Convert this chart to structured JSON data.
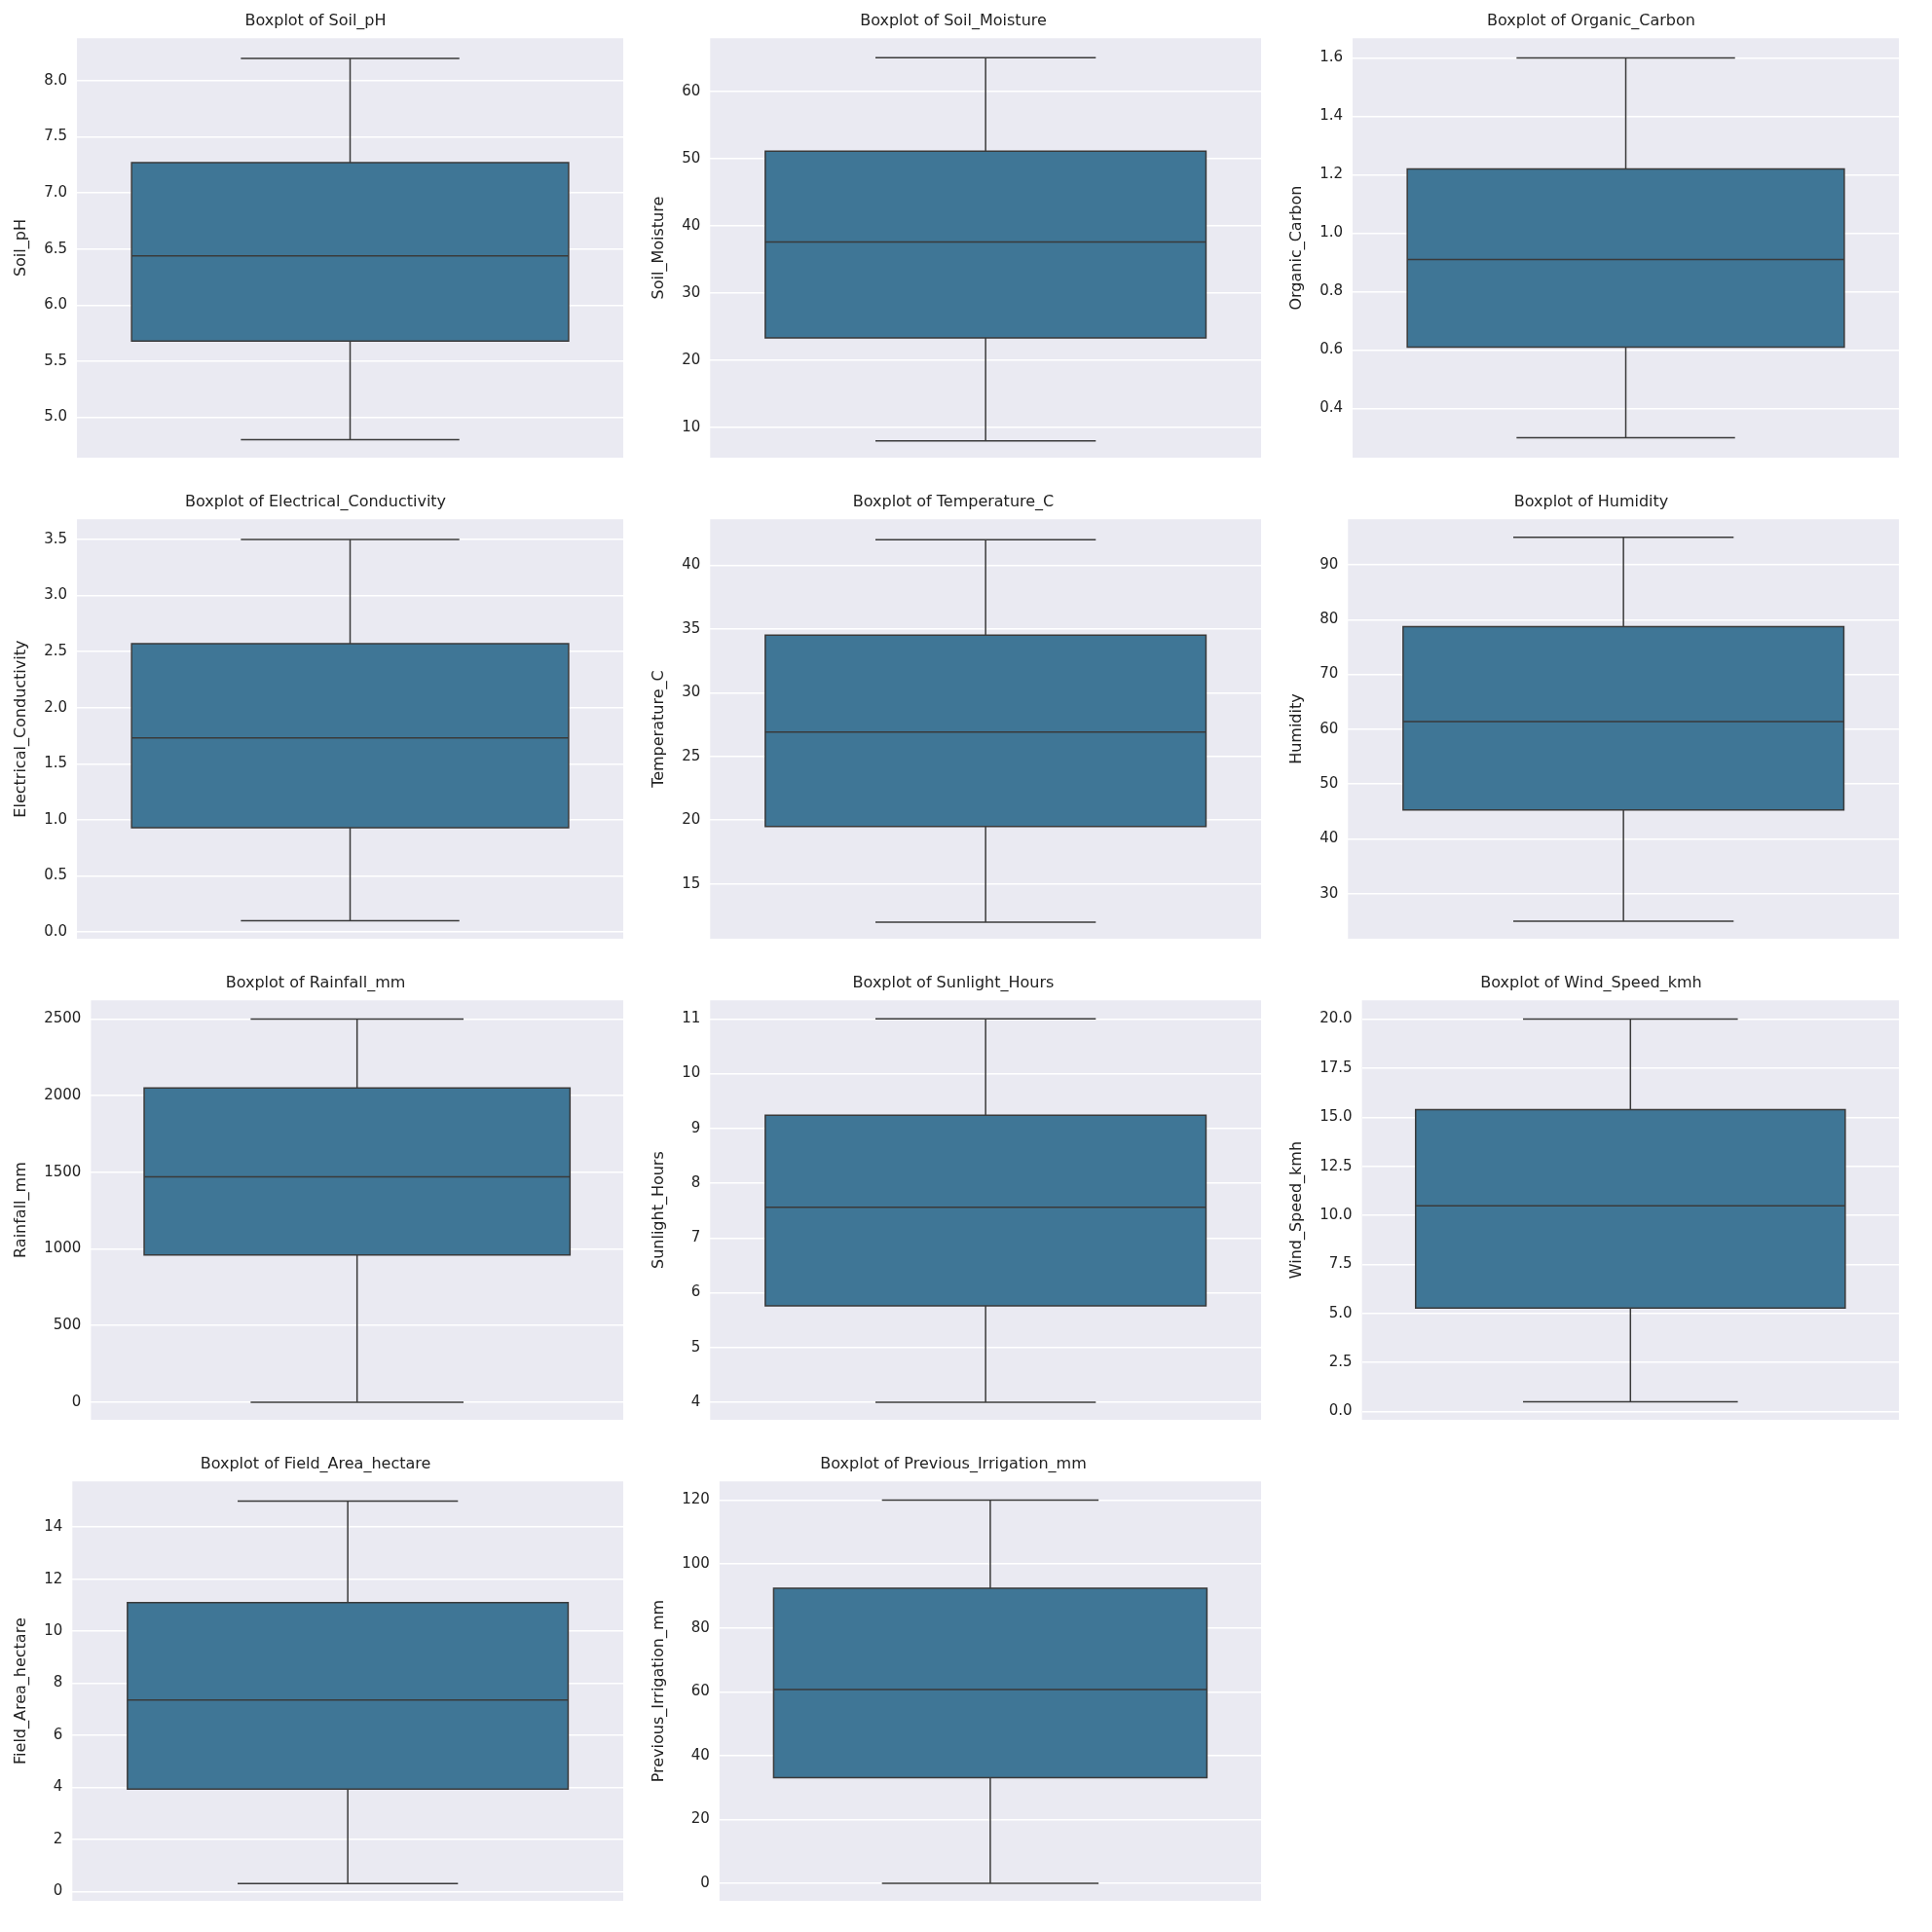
{
  "chart_data": [
    {
      "type": "box",
      "title": "Boxplot of Soil_pH",
      "ylabel": "Soil_pH",
      "categories": [
        null
      ],
      "color": "#3f7696",
      "grid": "y",
      "boxes": [
        {
          "low": 4.8,
          "q1": 5.68,
          "median": 6.44,
          "q3": 7.27,
          "high": 8.2
        }
      ],
      "ylim": [
        4.64,
        8.38
      ],
      "yticks": [
        {
          "value": 5,
          "label": "5.0"
        },
        5.5,
        {
          "value": 6,
          "label": "6.0"
        },
        6.5,
        {
          "value": 7,
          "label": "7.0"
        },
        7.5,
        {
          "value": 8,
          "label": "8.0"
        }
      ]
    },
    {
      "type": "box",
      "title": "Boxplot of Soil_Moisture",
      "ylabel": "Soil_Moisture",
      "categories": [
        null
      ],
      "color": "#3f7696",
      "grid": "y",
      "boxes": [
        {
          "low": 8,
          "q1": 23.3,
          "median": 37.6,
          "q3": 51.1,
          "high": 65
        }
      ],
      "ylim": [
        5.5,
        67.9
      ],
      "yticks": [
        10,
        20,
        30,
        40,
        50,
        60
      ]
    },
    {
      "type": "box",
      "title": "Boxplot of Organic_Carbon",
      "ylabel": "Organic_Carbon",
      "categories": [
        null
      ],
      "color": "#3f7696",
      "grid": "y",
      "boxes": [
        {
          "low": 0.3,
          "q1": 0.61,
          "median": 0.91,
          "q3": 1.22,
          "high": 1.6
        }
      ],
      "ylim": [
        0.232,
        1.668
      ],
      "yticks": [
        0.4,
        0.6,
        0.8,
        {
          "value": 1,
          "label": "1.0"
        },
        1.2,
        1.4,
        1.6
      ]
    },
    {
      "type": "box",
      "title": "Boxplot of Electrical_Conductivity",
      "ylabel": "Electrical_Conductivity",
      "categories": [
        null
      ],
      "color": "#3f7696",
      "grid": "y",
      "boxes": [
        {
          "low": 0.1,
          "q1": 0.93,
          "median": 1.73,
          "q3": 2.57,
          "high": 3.5
        }
      ],
      "ylim": [
        -0.06,
        3.68
      ],
      "yticks": [
        {
          "value": 0,
          "label": "0.0"
        },
        0.5,
        {
          "value": 1,
          "label": "1.0"
        },
        1.5,
        {
          "value": 2,
          "label": "2.0"
        },
        2.5,
        {
          "value": 3,
          "label": "3.0"
        },
        3.5
      ]
    },
    {
      "type": "box",
      "title": "Boxplot of Temperature_C",
      "ylabel": "Temperature_C",
      "categories": [
        null
      ],
      "color": "#3f7696",
      "grid": "y",
      "boxes": [
        {
          "low": 12,
          "q1": 19.5,
          "median": 26.9,
          "q3": 34.5,
          "high": 42
        }
      ],
      "ylim": [
        10.7,
        43.6
      ],
      "yticks": [
        15,
        20,
        25,
        30,
        35,
        40
      ]
    },
    {
      "type": "box",
      "title": "Boxplot of Humidity",
      "ylabel": "Humidity",
      "categories": [
        null
      ],
      "color": "#3f7696",
      "grid": "y",
      "boxes": [
        {
          "low": 25,
          "q1": 45.3,
          "median": 61.4,
          "q3": 78.7,
          "high": 95
        }
      ],
      "ylim": [
        21.8,
        98.3
      ],
      "yticks": [
        30,
        40,
        50,
        60,
        70,
        80,
        90
      ]
    },
    {
      "type": "box",
      "title": "Boxplot of Rainfall_mm",
      "ylabel": "Rainfall_mm",
      "categories": [
        null
      ],
      "color": "#3f7696",
      "grid": "y",
      "boxes": [
        {
          "low": 0,
          "q1": 960,
          "median": 1470,
          "q3": 2050,
          "high": 2500
        }
      ],
      "ylim": [
        -115,
        2623
      ],
      "yticks": [
        0,
        500,
        1000,
        1500,
        2000,
        2500
      ]
    },
    {
      "type": "box",
      "title": "Boxplot of Sunlight_Hours",
      "ylabel": "Sunlight_Hours",
      "categories": [
        null
      ],
      "color": "#3f7696",
      "grid": "y",
      "boxes": [
        {
          "low": 4,
          "q1": 5.76,
          "median": 7.56,
          "q3": 9.24,
          "high": 11
        }
      ],
      "ylim": [
        3.68,
        11.34
      ],
      "yticks": [
        4,
        5,
        6,
        7,
        8,
        9,
        10,
        11
      ]
    },
    {
      "type": "box",
      "title": "Boxplot of Wind_Speed_kmh",
      "ylabel": "Wind_Speed_kmh",
      "categories": [
        null
      ],
      "color": "#3f7696",
      "grid": "y",
      "boxes": [
        {
          "low": 0.5,
          "q1": 5.27,
          "median": 10.48,
          "q3": 15.39,
          "high": 20
        }
      ],
      "ylim": [
        -0.42,
        20.96
      ],
      "yticks": [
        {
          "value": 0,
          "label": "0.0"
        },
        2.5,
        {
          "value": 5,
          "label": "5.0"
        },
        7.5,
        {
          "value": 10,
          "label": "10.0"
        },
        12.5,
        {
          "value": 15,
          "label": "15.0"
        },
        17.5,
        {
          "value": 20,
          "label": "20.0"
        }
      ]
    },
    {
      "type": "box",
      "title": "Boxplot of Field_Area_hectare",
      "ylabel": "Field_Area_hectare",
      "categories": [
        null
      ],
      "color": "#3f7696",
      "grid": "y",
      "boxes": [
        {
          "low": 0.3,
          "q1": 3.93,
          "median": 7.36,
          "q3": 11.1,
          "high": 15
        }
      ],
      "ylim": [
        -0.36,
        15.76
      ],
      "yticks": [
        0,
        2,
        4,
        6,
        8,
        10,
        12,
        14
      ]
    },
    {
      "type": "box",
      "title": "Boxplot of Previous_Irrigation_mm",
      "ylabel": "Previous_Irrigation_mm",
      "categories": [
        null
      ],
      "color": "#3f7696",
      "grid": "y",
      "boxes": [
        {
          "low": 0,
          "q1": 33.1,
          "median": 60.7,
          "q3": 92.4,
          "high": 120
        }
      ],
      "ylim": [
        -5.5,
        125.9
      ],
      "yticks": [
        0,
        20,
        40,
        60,
        80,
        100,
        120
      ]
    }
  ]
}
